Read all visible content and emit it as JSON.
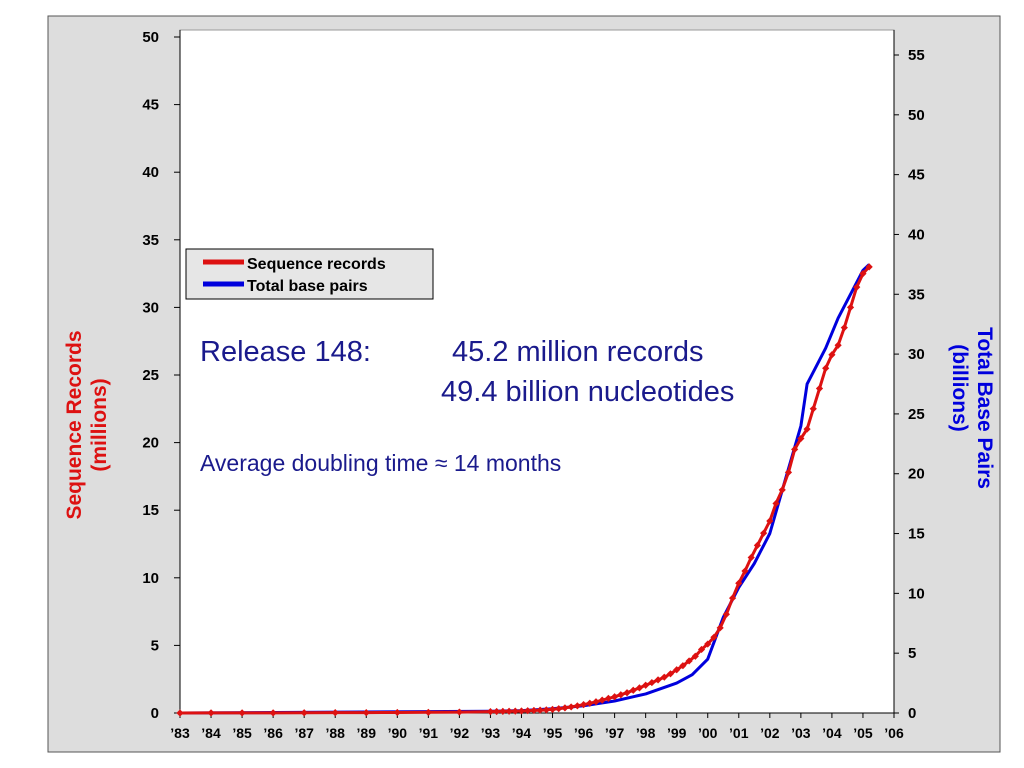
{
  "chart_data": {
    "type": "line",
    "y1label_line1": "Sequence Records",
    "y1label_line2": "(millions)",
    "y2label_line1": "Total Base Pairs",
    "y2label_line2": "(billions)",
    "y1lim": [
      0,
      50
    ],
    "y2lim": [
      0,
      55
    ],
    "y1ticks": [
      0,
      5,
      10,
      15,
      20,
      25,
      30,
      35,
      40,
      45,
      50
    ],
    "y2ticks": [
      0,
      5,
      10,
      15,
      20,
      25,
      30,
      35,
      40,
      45,
      50,
      55
    ],
    "xlim": [
      1983,
      2006
    ],
    "xticks": [
      {
        "x": 1983,
        "label": "’83"
      },
      {
        "x": 1984,
        "label": "’84"
      },
      {
        "x": 1985,
        "label": "’85"
      },
      {
        "x": 1986,
        "label": "’86"
      },
      {
        "x": 1987,
        "label": "’87"
      },
      {
        "x": 1988,
        "label": "’88"
      },
      {
        "x": 1989,
        "label": "’89"
      },
      {
        "x": 1990,
        "label": "’90"
      },
      {
        "x": 1991,
        "label": "’91"
      },
      {
        "x": 1992,
        "label": "’92"
      },
      {
        "x": 1993,
        "label": "’93"
      },
      {
        "x": 1994,
        "label": "’94"
      },
      {
        "x": 1995,
        "label": "’95"
      },
      {
        "x": 1996,
        "label": "’96"
      },
      {
        "x": 1997,
        "label": "’97"
      },
      {
        "x": 1998,
        "label": "’98"
      },
      {
        "x": 1999,
        "label": "’99"
      },
      {
        "x": 2000,
        "label": "’00"
      },
      {
        "x": 2001,
        "label": "’01"
      },
      {
        "x": 2002,
        "label": "’02"
      },
      {
        "x": 2003,
        "label": "’03"
      },
      {
        "x": 2004,
        "label": "’04"
      },
      {
        "x": 2005,
        "label": "’05"
      },
      {
        "x": 2006,
        "label": "’06"
      }
    ],
    "grid": false,
    "legend_position": "upper-left",
    "legend": [
      {
        "name": "Sequence records",
        "color": "#dd1111"
      },
      {
        "name": "Total base pairs",
        "color": "#0000dd"
      }
    ],
    "series": [
      {
        "name": "Sequence records",
        "axis": "left",
        "color": "#dd1111",
        "markers": true,
        "points": [
          [
            1983.0,
            0.0
          ],
          [
            1984.0,
            0.01
          ],
          [
            1985.0,
            0.01
          ],
          [
            1986.0,
            0.01
          ],
          [
            1987.0,
            0.02
          ],
          [
            1988.0,
            0.03
          ],
          [
            1989.0,
            0.03
          ],
          [
            1990.0,
            0.04
          ],
          [
            1991.0,
            0.05
          ],
          [
            1992.0,
            0.07
          ],
          [
            1993.0,
            0.1
          ],
          [
            1993.2,
            0.11
          ],
          [
            1993.4,
            0.12
          ],
          [
            1993.6,
            0.13
          ],
          [
            1993.8,
            0.14
          ],
          [
            1994.0,
            0.15
          ],
          [
            1994.2,
            0.17
          ],
          [
            1994.4,
            0.19
          ],
          [
            1994.6,
            0.21
          ],
          [
            1994.8,
            0.23
          ],
          [
            1995.0,
            0.27
          ],
          [
            1995.2,
            0.32
          ],
          [
            1995.4,
            0.38
          ],
          [
            1995.6,
            0.45
          ],
          [
            1995.8,
            0.53
          ],
          [
            1996.0,
            0.62
          ],
          [
            1996.2,
            0.72
          ],
          [
            1996.4,
            0.83
          ],
          [
            1996.6,
            0.95
          ],
          [
            1996.8,
            1.08
          ],
          [
            1997.0,
            1.2
          ],
          [
            1997.2,
            1.35
          ],
          [
            1997.4,
            1.5
          ],
          [
            1997.6,
            1.68
          ],
          [
            1997.8,
            1.86
          ],
          [
            1998.0,
            2.05
          ],
          [
            1998.2,
            2.25
          ],
          [
            1998.4,
            2.45
          ],
          [
            1998.6,
            2.65
          ],
          [
            1998.8,
            2.9
          ],
          [
            1999.0,
            3.2
          ],
          [
            1999.2,
            3.5
          ],
          [
            1999.4,
            3.85
          ],
          [
            1999.6,
            4.2
          ],
          [
            1999.8,
            4.7
          ],
          [
            2000.0,
            5.1
          ],
          [
            2000.2,
            5.6
          ],
          [
            2000.4,
            6.3
          ],
          [
            2000.6,
            7.3
          ],
          [
            2000.8,
            8.5
          ],
          [
            2001.0,
            9.6
          ],
          [
            2001.2,
            10.5
          ],
          [
            2001.4,
            11.5
          ],
          [
            2001.6,
            12.4
          ],
          [
            2001.8,
            13.3
          ],
          [
            2002.0,
            14.2
          ],
          [
            2002.2,
            15.5
          ],
          [
            2002.4,
            16.5
          ],
          [
            2002.6,
            17.8
          ],
          [
            2002.8,
            19.5
          ],
          [
            2003.0,
            20.3
          ],
          [
            2003.2,
            21.0
          ],
          [
            2003.4,
            22.5
          ],
          [
            2003.6,
            24.0
          ],
          [
            2003.8,
            25.5
          ],
          [
            2004.0,
            26.5
          ],
          [
            2004.2,
            27.2
          ],
          [
            2004.4,
            28.5
          ],
          [
            2004.6,
            30.0
          ],
          [
            2004.8,
            31.5
          ],
          [
            2005.0,
            32.5
          ],
          [
            2005.2,
            33.0
          ]
        ]
      },
      {
        "name": "Total base pairs",
        "axis": "right",
        "color": "#0000dd",
        "markers": false,
        "points": [
          [
            1983.0,
            0.0
          ],
          [
            1993.0,
            0.15
          ],
          [
            1994.0,
            0.2
          ],
          [
            1995.0,
            0.35
          ],
          [
            1996.0,
            0.6
          ],
          [
            1997.0,
            1.0
          ],
          [
            1998.0,
            1.6
          ],
          [
            1999.0,
            2.5
          ],
          [
            1999.5,
            3.2
          ],
          [
            2000.0,
            4.5
          ],
          [
            2000.5,
            8.0
          ],
          [
            2001.0,
            10.5
          ],
          [
            2001.5,
            12.5
          ],
          [
            2002.0,
            15.0
          ],
          [
            2002.5,
            19.5
          ],
          [
            2003.0,
            24.0
          ],
          [
            2003.2,
            27.5
          ],
          [
            2003.5,
            29.0
          ],
          [
            2003.8,
            30.5
          ],
          [
            2004.2,
            33.0
          ],
          [
            2004.6,
            35.0
          ],
          [
            2005.0,
            37.0
          ],
          [
            2005.2,
            37.5
          ]
        ]
      }
    ],
    "annotations": {
      "release_label": "Release 148:",
      "records": "45.2 million records",
      "nucleotides": "49.4 billion nucleotides",
      "doubling": "Average doubling time ≈ 14 months"
    }
  }
}
